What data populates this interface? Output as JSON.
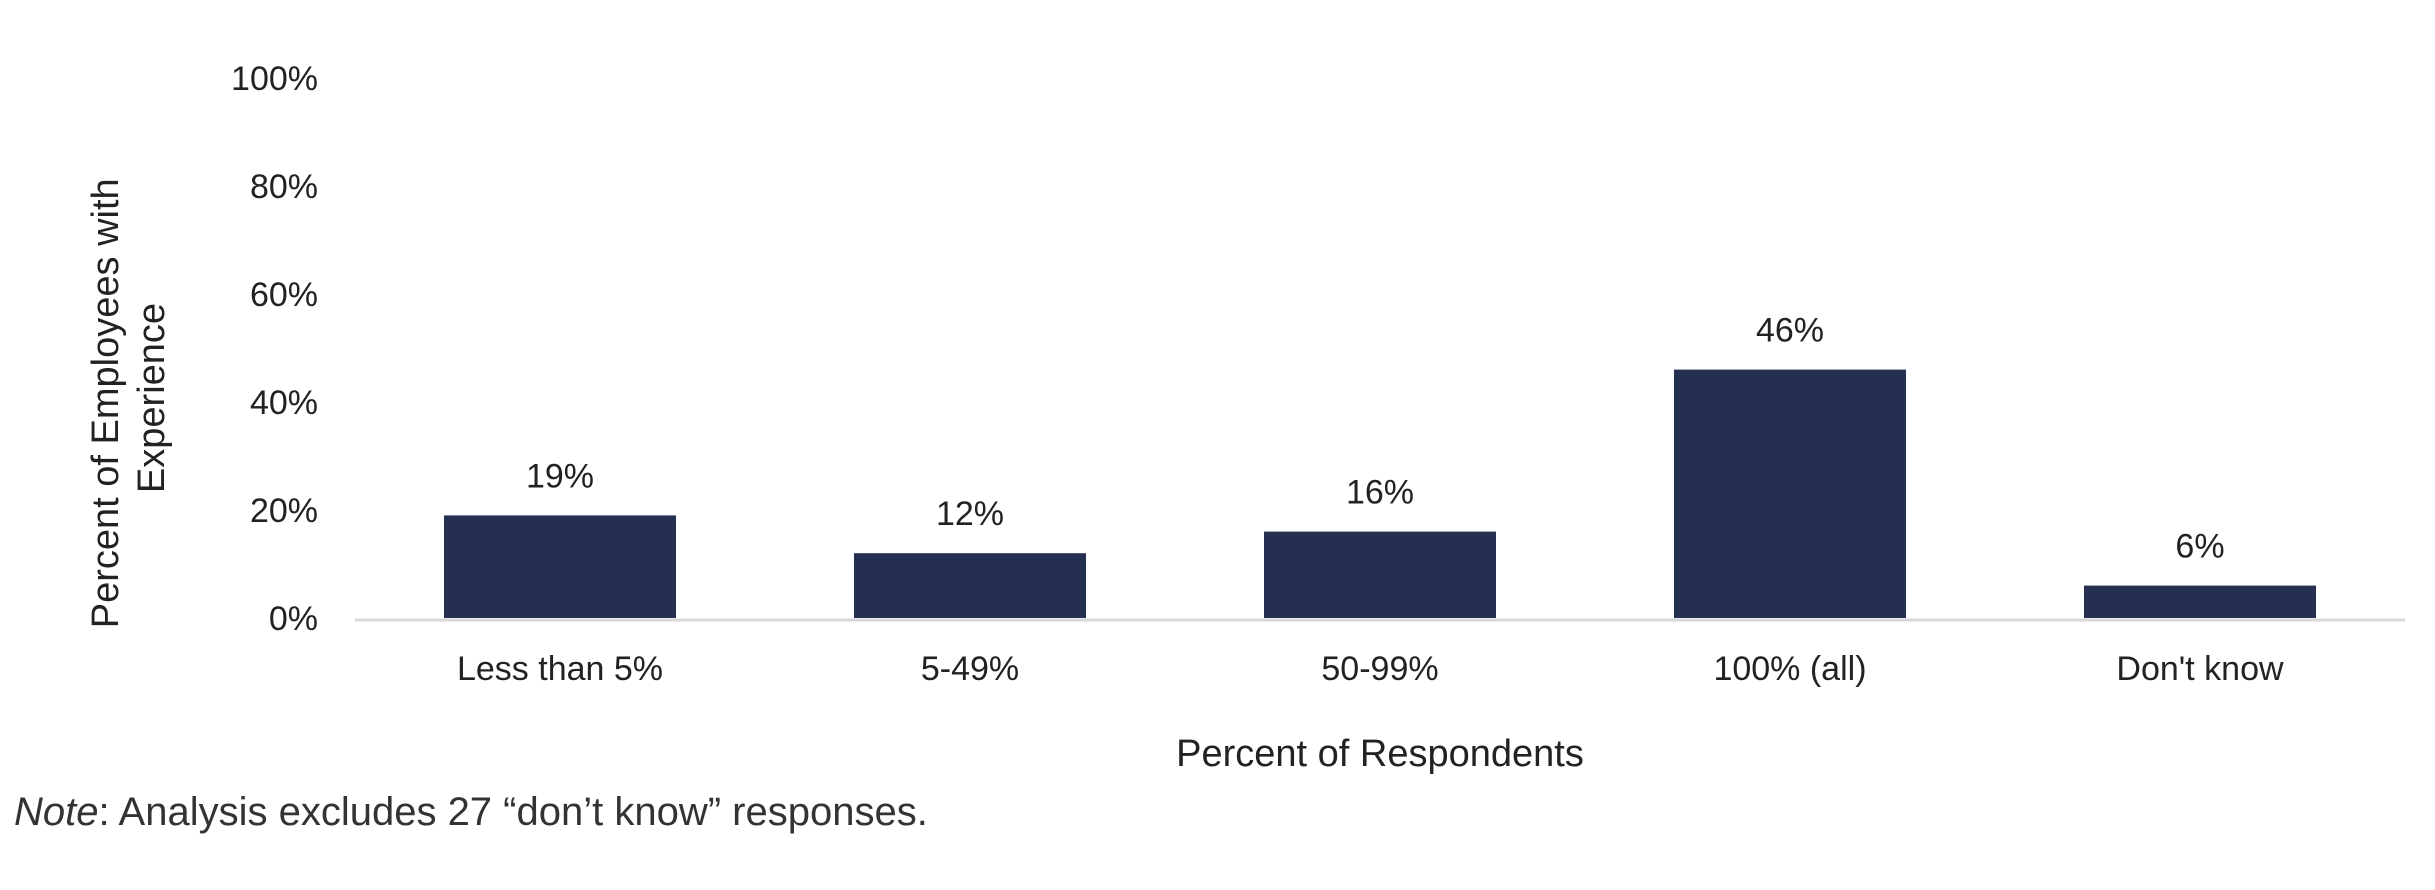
{
  "chart_data": {
    "type": "bar",
    "categories": [
      "Less than 5%",
      "5-49%",
      "50-99%",
      "100% (all)",
      "Don't know"
    ],
    "values": [
      19,
      12,
      16,
      46,
      6
    ],
    "data_labels": [
      "19%",
      "12%",
      "16%",
      "46%",
      "6%"
    ],
    "xlabel": "Percent of Respondents",
    "ylabel_lines": [
      "Percent of Employees with",
      "Experience"
    ],
    "ylim": [
      0,
      100
    ],
    "yticks": [
      0,
      20,
      40,
      60,
      80,
      100
    ],
    "ytick_labels": [
      "0%",
      "20%",
      "40%",
      "60%",
      "80%",
      "100%"
    ],
    "grid": false,
    "bar_color": "#252F52",
    "axis_color": "#D9D9D9"
  },
  "note": {
    "prefix": "Note",
    "text": ": Analysis excludes 27 “don’t know” responses."
  }
}
